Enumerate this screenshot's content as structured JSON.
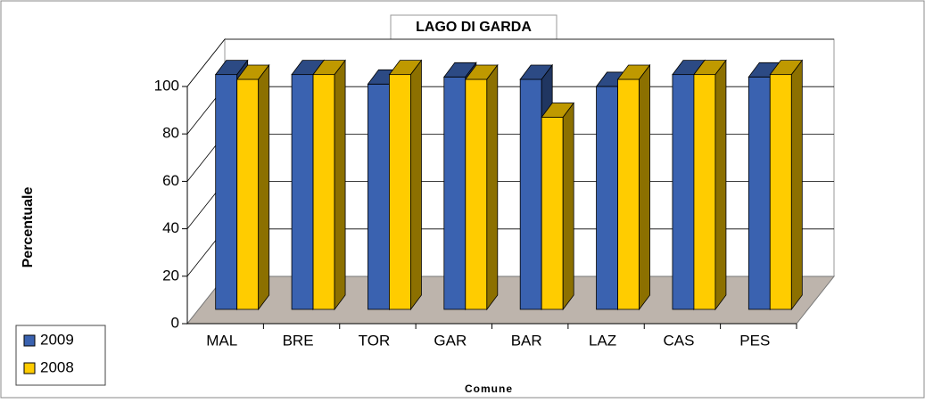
{
  "chart_data": {
    "type": "bar3d",
    "title": "LAGO DI GARDA",
    "xlabel": "Comune",
    "ylabel": "Percentuale",
    "categories": [
      "MAL",
      "BRE",
      "TOR",
      "GAR",
      "BAR",
      "LAZ",
      "CAS",
      "PES"
    ],
    "series": [
      {
        "name": "2009",
        "color": "#3a62b0",
        "values": [
          99,
          99,
          95,
          98,
          97,
          94,
          99,
          98
        ]
      },
      {
        "name": "2008",
        "color": "#ffcc00",
        "values": [
          97,
          99,
          99,
          97,
          81,
          97,
          99,
          99
        ]
      }
    ],
    "ylim": [
      0,
      100
    ],
    "yticks": [
      0,
      20,
      40,
      60,
      80,
      100
    ],
    "grid": true,
    "legend": "bottom-left"
  }
}
